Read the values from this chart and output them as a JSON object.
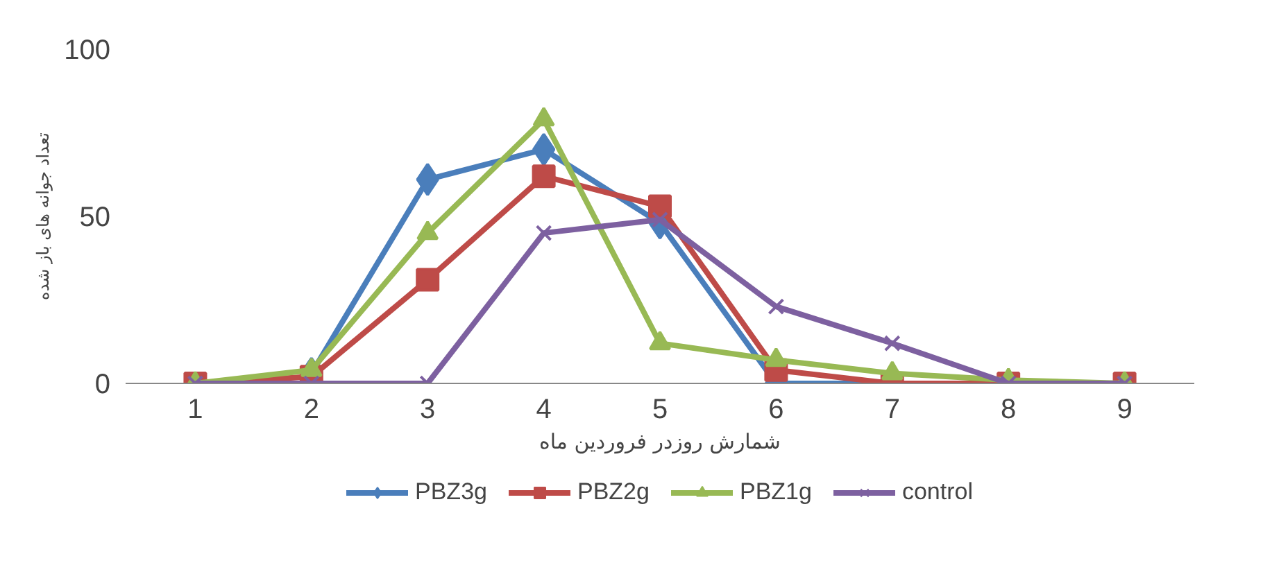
{
  "chart_data": {
    "type": "line",
    "xlabel": "شمارش روزدر فروردین ماه",
    "ylabel": "تعداد جوانه های باز شده",
    "categories": [
      "1",
      "2",
      "3",
      "4",
      "5",
      "6",
      "7",
      "8",
      "9"
    ],
    "ylim": [
      0,
      100
    ],
    "yticks": [
      0,
      50,
      100
    ],
    "grid": false,
    "legend": "bottom",
    "line_style": "solid",
    "series": [
      {
        "name": "PBZ3g",
        "color": "#4a7ebb",
        "marker": "diamond",
        "values": [
          null,
          3,
          61,
          70,
          48,
          0,
          0,
          null,
          null
        ]
      },
      {
        "name": "PBZ2g",
        "color": "#be4b48",
        "marker": "square",
        "values": [
          0,
          2,
          31,
          62,
          53,
          4,
          0,
          0,
          0
        ]
      },
      {
        "name": "PBZ1g",
        "color": "#98b954",
        "marker": "triangle",
        "values": [
          0,
          4,
          45,
          79,
          12,
          7,
          3,
          1,
          0
        ]
      },
      {
        "name": "control",
        "color": "#7d60a0",
        "marker": "cross",
        "values": [
          0,
          0,
          0,
          45,
          49,
          23,
          12,
          0,
          0
        ]
      }
    ]
  }
}
